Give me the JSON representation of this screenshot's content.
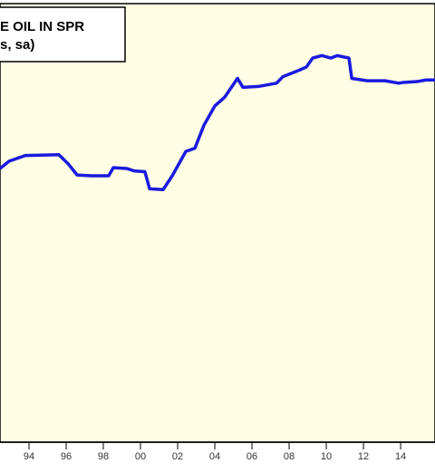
{
  "chart_data": {
    "type": "line",
    "title": "E OIL IN SPR",
    "subtitle": "s, sa)",
    "x": [
      1992.44,
      1992.93,
      1993.8,
      1995.61,
      1996.1,
      1996.59,
      1997.32,
      1998.29,
      1998.54,
      1999.27,
      1999.66,
      2000.24,
      2000.49,
      2001.22,
      2001.71,
      2002.44,
      2002.93,
      2003.41,
      2004.0,
      2004.54,
      2005.22,
      2005.51,
      2006.34,
      2007.32,
      2007.66,
      2008.54,
      2008.93,
      2009.27,
      2009.76,
      2010.24,
      2010.59,
      2011.22,
      2011.37,
      2012.2,
      2013.17,
      2013.9,
      2014.15,
      2014.88,
      2015.37,
      2015.85
    ],
    "series": [
      {
        "color": "#1a1adf",
        "values": [
          587,
          596,
          603,
          604,
          593,
          579,
          578,
          578,
          588,
          587,
          584,
          583,
          562,
          561,
          578,
          608,
          612,
          640,
          664,
          675,
          698,
          687,
          688,
          692,
          700,
          708,
          712,
          723,
          726,
          723,
          726,
          723,
          698,
          695,
          695,
          692,
          693,
          694,
          696,
          696
        ]
      }
    ],
    "xlim": [
      1992.44,
      2015.85
    ],
    "ylim": [
      250,
      790
    ],
    "xticks": [
      {
        "value": 1994,
        "label": "94"
      },
      {
        "value": 1996,
        "label": "96"
      },
      {
        "value": 1998,
        "label": "98"
      },
      {
        "value": 2000,
        "label": "00"
      },
      {
        "value": 2002,
        "label": "02"
      },
      {
        "value": 2004,
        "label": "04"
      },
      {
        "value": 2006,
        "label": "06"
      },
      {
        "value": 2008,
        "label": "08"
      },
      {
        "value": 2010,
        "label": "10"
      },
      {
        "value": 2012,
        "label": "12"
      },
      {
        "value": 2014,
        "label": "14"
      }
    ]
  }
}
